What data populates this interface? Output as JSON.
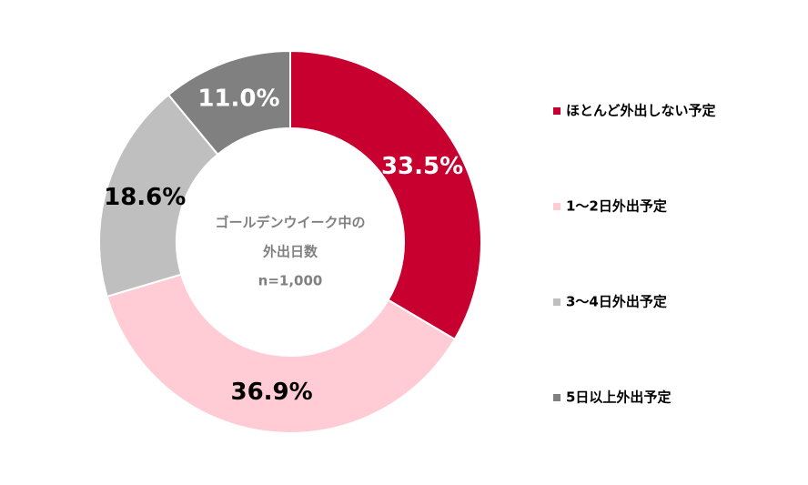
{
  "chart_data": {
    "type": "donut",
    "categories": [
      "ほとんど外出しない予定",
      "1〜2日外出予定",
      "3〜4日外出予定",
      "5日以上外出予定"
    ],
    "values": [
      33.5,
      36.9,
      18.6,
      11.0
    ],
    "value_labels": [
      "33.5%",
      "36.9%",
      "18.6%",
      "11.0%"
    ],
    "colors": [
      "#c8002f",
      "#ffccd5",
      "#bfbfbf",
      "#808080"
    ],
    "center_text": [
      "ゴールデンウイーク中の",
      "外出日数",
      "n=1,000"
    ],
    "legend": "right"
  }
}
